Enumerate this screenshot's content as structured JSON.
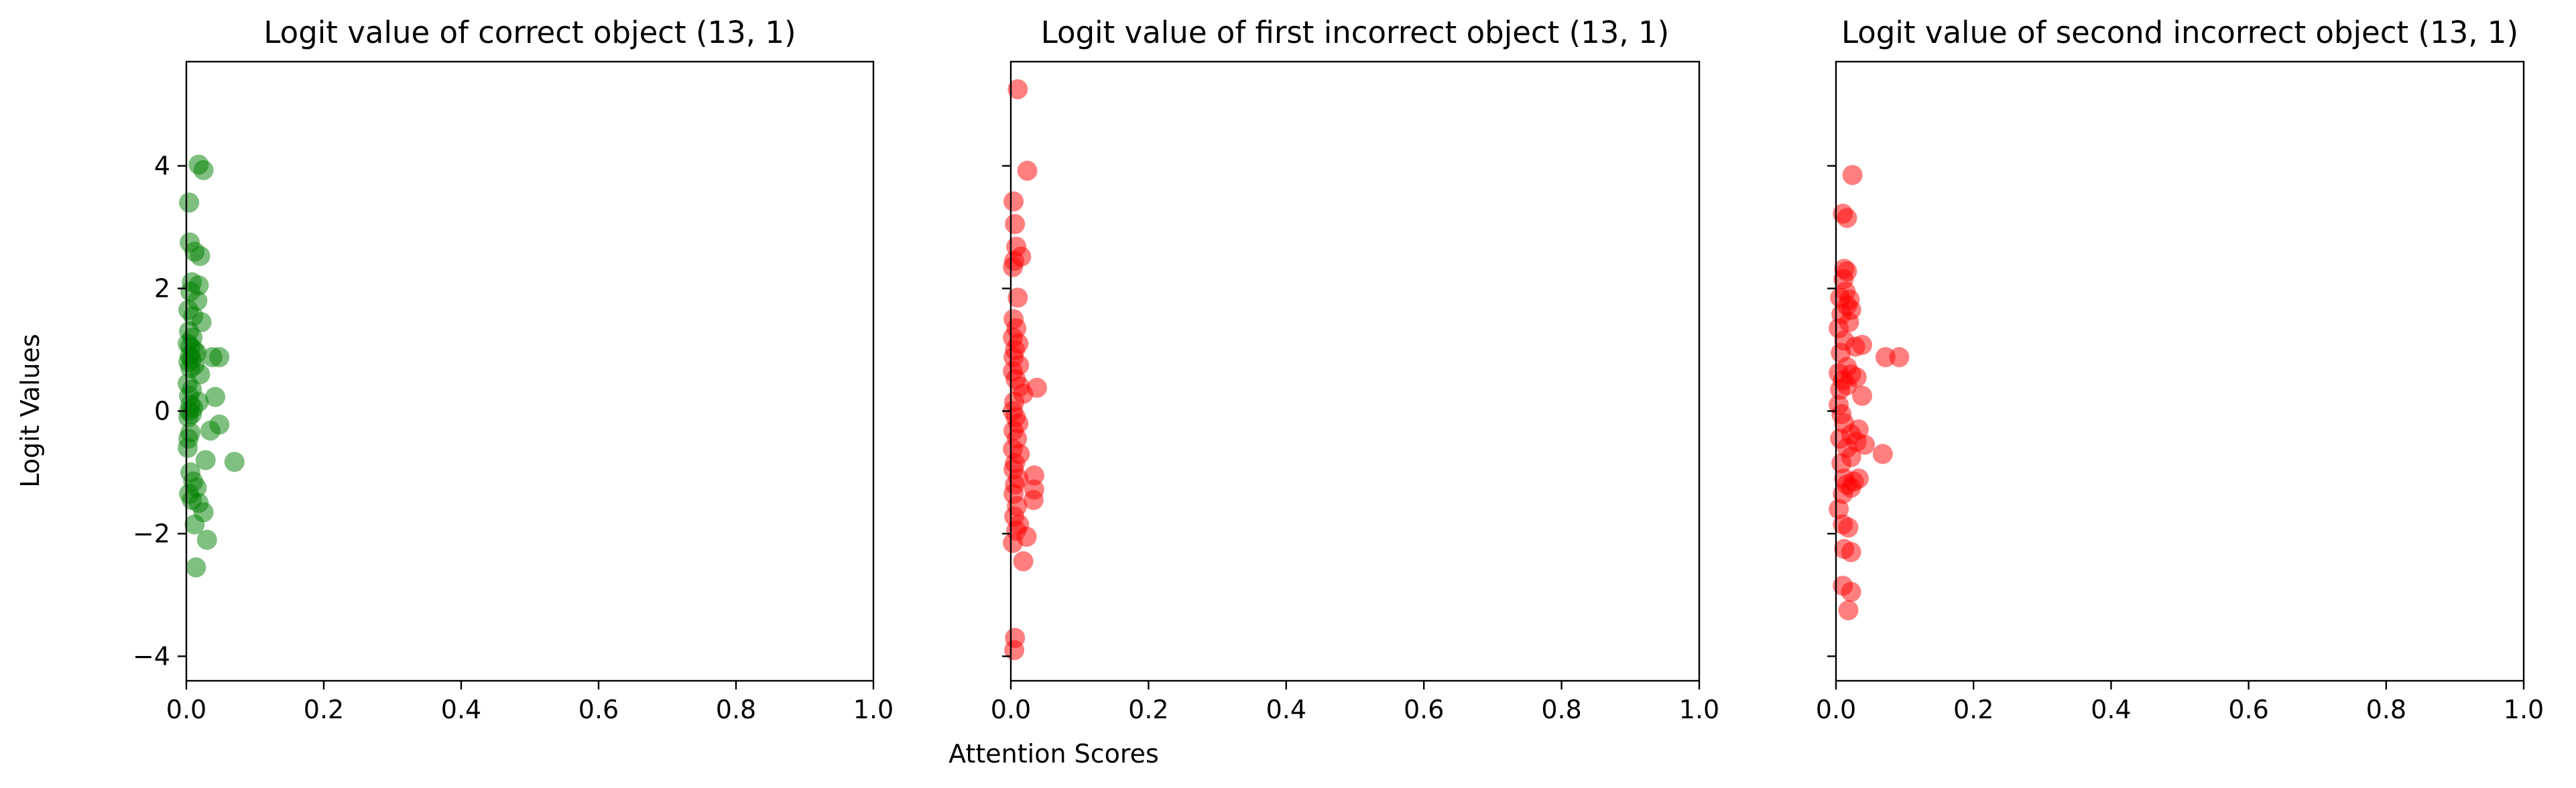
{
  "figure": {
    "ylabel": "Logit Values",
    "xlabel": "Attention Scores"
  },
  "chart_data": [
    {
      "type": "scatter",
      "title": "Logit value of correct object (13, 1)",
      "xlabel": "",
      "ylabel": "",
      "xlim": [
        0,
        1
      ],
      "ylim": [
        -4.4,
        5.7
      ],
      "xticks": [
        "0.0",
        "0.2",
        "0.4",
        "0.6",
        "0.8",
        "1.0"
      ],
      "yticks": [
        "−4",
        "−2",
        "0",
        "2",
        "4"
      ],
      "marker_color": "#008000",
      "grid": false,
      "points": [
        [
          0.018,
          4.02
        ],
        [
          0.025,
          3.93
        ],
        [
          0.004,
          3.4
        ],
        [
          0.005,
          2.75
        ],
        [
          0.012,
          2.6
        ],
        [
          0.02,
          2.53
        ],
        [
          0.008,
          2.1
        ],
        [
          0.018,
          2.05
        ],
        [
          0.006,
          1.95
        ],
        [
          0.016,
          1.8
        ],
        [
          0.003,
          1.65
        ],
        [
          0.01,
          1.55
        ],
        [
          0.022,
          1.45
        ],
        [
          0.004,
          1.3
        ],
        [
          0.009,
          1.2
        ],
        [
          0.002,
          1.1
        ],
        [
          0.006,
          1.05
        ],
        [
          0.011,
          1.0
        ],
        [
          0.015,
          0.95
        ],
        [
          0.005,
          0.9
        ],
        [
          0.008,
          0.85
        ],
        [
          0.003,
          0.8
        ],
        [
          0.012,
          0.75
        ],
        [
          0.038,
          0.88
        ],
        [
          0.048,
          0.88
        ],
        [
          0.006,
          0.7
        ],
        [
          0.02,
          0.6
        ],
        [
          0.002,
          0.45
        ],
        [
          0.008,
          0.35
        ],
        [
          0.004,
          0.25
        ],
        [
          0.042,
          0.23
        ],
        [
          0.018,
          0.15
        ],
        [
          0.006,
          0.1
        ],
        [
          0.01,
          0.05
        ],
        [
          0.004,
          0.0
        ],
        [
          0.008,
          -0.05
        ],
        [
          0.003,
          -0.1
        ],
        [
          0.048,
          -0.22
        ],
        [
          0.035,
          -0.32
        ],
        [
          0.006,
          -0.35
        ],
        [
          0.003,
          -0.45
        ],
        [
          0.002,
          -0.6
        ],
        [
          0.028,
          -0.8
        ],
        [
          0.07,
          -0.83
        ],
        [
          0.006,
          -1.0
        ],
        [
          0.01,
          -1.15
        ],
        [
          0.015,
          -1.25
        ],
        [
          0.004,
          -1.35
        ],
        [
          0.008,
          -1.45
        ],
        [
          0.018,
          -1.5
        ],
        [
          0.025,
          -1.65
        ],
        [
          0.012,
          -1.85
        ],
        [
          0.03,
          -2.1
        ],
        [
          0.014,
          -2.55
        ]
      ]
    },
    {
      "type": "scatter",
      "title": "Logit value of first incorrect object (13, 1)",
      "xlabel": "",
      "ylabel": "",
      "xlim": [
        0,
        1
      ],
      "ylim": [
        -4.4,
        5.7
      ],
      "xticks": [
        "0.0",
        "0.2",
        "0.4",
        "0.6",
        "0.8",
        "1.0"
      ],
      "yticks": [],
      "marker_color": "#ff0000",
      "grid": false,
      "points": [
        [
          0.01,
          5.25
        ],
        [
          0.024,
          3.92
        ],
        [
          0.004,
          3.42
        ],
        [
          0.006,
          3.05
        ],
        [
          0.008,
          2.68
        ],
        [
          0.015,
          2.52
        ],
        [
          0.005,
          2.45
        ],
        [
          0.003,
          2.35
        ],
        [
          0.01,
          1.85
        ],
        [
          0.004,
          1.5
        ],
        [
          0.008,
          1.35
        ],
        [
          0.003,
          1.2
        ],
        [
          0.011,
          1.1
        ],
        [
          0.006,
          1.0
        ],
        [
          0.004,
          0.88
        ],
        [
          0.012,
          0.75
        ],
        [
          0.003,
          0.65
        ],
        [
          0.007,
          0.52
        ],
        [
          0.013,
          0.4
        ],
        [
          0.038,
          0.38
        ],
        [
          0.018,
          0.28
        ],
        [
          0.005,
          0.15
        ],
        [
          0.003,
          0.0
        ],
        [
          0.007,
          -0.1
        ],
        [
          0.011,
          -0.2
        ],
        [
          0.004,
          -0.32
        ],
        [
          0.009,
          -0.45
        ],
        [
          0.003,
          -0.62
        ],
        [
          0.013,
          -0.7
        ],
        [
          0.006,
          -0.85
        ],
        [
          0.004,
          -0.95
        ],
        [
          0.034,
          -1.05
        ],
        [
          0.011,
          -1.1
        ],
        [
          0.006,
          -1.2
        ],
        [
          0.034,
          -1.28
        ],
        [
          0.004,
          -1.35
        ],
        [
          0.033,
          -1.45
        ],
        [
          0.009,
          -1.55
        ],
        [
          0.005,
          -1.72
        ],
        [
          0.012,
          -1.85
        ],
        [
          0.008,
          -1.95
        ],
        [
          0.023,
          -2.05
        ],
        [
          0.003,
          -2.15
        ],
        [
          0.018,
          -2.45
        ],
        [
          0.006,
          -3.7
        ],
        [
          0.005,
          -3.9
        ]
      ]
    },
    {
      "type": "scatter",
      "title": "Logit value of second incorrect object (13, 1)",
      "xlabel": "",
      "ylabel": "",
      "xlim": [
        0,
        1
      ],
      "ylim": [
        -4.4,
        5.7
      ],
      "xticks": [
        "0.0",
        "0.2",
        "0.4",
        "0.6",
        "0.8",
        "1.0"
      ],
      "yticks": [],
      "marker_color": "#ff0000",
      "grid": false,
      "points": [
        [
          0.024,
          3.85
        ],
        [
          0.01,
          3.22
        ],
        [
          0.016,
          3.15
        ],
        [
          0.012,
          2.32
        ],
        [
          0.016,
          2.28
        ],
        [
          0.011,
          2.15
        ],
        [
          0.014,
          1.95
        ],
        [
          0.006,
          1.85
        ],
        [
          0.02,
          1.82
        ],
        [
          0.016,
          1.72
        ],
        [
          0.022,
          1.65
        ],
        [
          0.008,
          1.58
        ],
        [
          0.019,
          1.45
        ],
        [
          0.004,
          1.35
        ],
        [
          0.012,
          1.15
        ],
        [
          0.028,
          1.05
        ],
        [
          0.038,
          1.08
        ],
        [
          0.007,
          0.95
        ],
        [
          0.072,
          0.88
        ],
        [
          0.092,
          0.88
        ],
        [
          0.016,
          0.72
        ],
        [
          0.004,
          0.62
        ],
        [
          0.022,
          0.6
        ],
        [
          0.03,
          0.55
        ],
        [
          0.01,
          0.5
        ],
        [
          0.016,
          0.42
        ],
        [
          0.006,
          0.35
        ],
        [
          0.038,
          0.25
        ],
        [
          0.004,
          0.1
        ],
        [
          0.008,
          -0.05
        ],
        [
          0.012,
          -0.2
        ],
        [
          0.033,
          -0.3
        ],
        [
          0.022,
          -0.38
        ],
        [
          0.006,
          -0.45
        ],
        [
          0.03,
          -0.5
        ],
        [
          0.016,
          -0.6
        ],
        [
          0.042,
          -0.55
        ],
        [
          0.068,
          -0.7
        ],
        [
          0.022,
          -0.75
        ],
        [
          0.008,
          -0.85
        ],
        [
          0.012,
          -1.1
        ],
        [
          0.033,
          -1.1
        ],
        [
          0.026,
          -1.15
        ],
        [
          0.016,
          -1.2
        ],
        [
          0.022,
          -1.25
        ],
        [
          0.01,
          -1.35
        ],
        [
          0.004,
          -1.6
        ],
        [
          0.01,
          -1.85
        ],
        [
          0.018,
          -1.9
        ],
        [
          0.012,
          -2.25
        ],
        [
          0.022,
          -2.3
        ],
        [
          0.01,
          -2.85
        ],
        [
          0.022,
          -2.95
        ],
        [
          0.018,
          -3.25
        ]
      ]
    }
  ]
}
